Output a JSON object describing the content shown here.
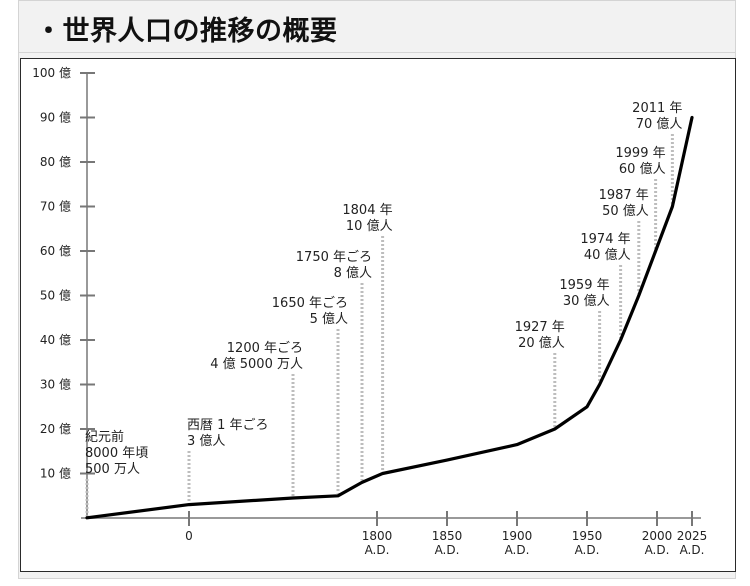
{
  "page_title": "・世界人口の推移の概要",
  "chart_data": {
    "type": "line",
    "title": "",
    "xlabel": "",
    "ylabel": "",
    "y_unit": "億",
    "ylim": [
      0,
      100
    ],
    "y_tick_values": [
      10,
      20,
      30,
      40,
      50,
      60,
      70,
      80,
      90,
      100
    ],
    "y_tick_labels": [
      "10 億",
      "20 億",
      "30 億",
      "40 億",
      "50 億",
      "60 億",
      "70 億",
      "80 億",
      "90 億",
      "100 億"
    ],
    "x_ticks": [
      {
        "year": 0,
        "lines": [
          "0"
        ]
      },
      {
        "year": 1800,
        "lines": [
          "1800",
          "A.D."
        ]
      },
      {
        "year": 1850,
        "lines": [
          "1850",
          "A.D."
        ]
      },
      {
        "year": 1900,
        "lines": [
          "1900",
          "A.D."
        ]
      },
      {
        "year": 1950,
        "lines": [
          "1950",
          "A.D."
        ]
      },
      {
        "year": 2000,
        "lines": [
          "2000",
          "A.D."
        ]
      },
      {
        "year": 2025,
        "lines": [
          "2025",
          "A.D."
        ]
      }
    ],
    "grid": false,
    "x_scale": "non-linear (ancient era compressed before 1800 A.D.)",
    "series": [
      {
        "points": [
          {
            "x": -8000,
            "y": 0.05
          },
          {
            "x": 0,
            "y": 3
          },
          {
            "x": 1200,
            "y": 4.5
          },
          {
            "x": 1650,
            "y": 5
          },
          {
            "x": 1750,
            "y": 8
          },
          {
            "x": 1804,
            "y": 10
          },
          {
            "x": 1850,
            "y": 13
          },
          {
            "x": 1900,
            "y": 16.5
          },
          {
            "x": 1927,
            "y": 20
          },
          {
            "x": 1950,
            "y": 25
          },
          {
            "x": 1959,
            "y": 30
          },
          {
            "x": 1974,
            "y": 40
          },
          {
            "x": 1987,
            "y": 50
          },
          {
            "x": 1999,
            "y": 60
          },
          {
            "x": 2011,
            "y": 70
          },
          {
            "x": 2025,
            "y": 90
          }
        ]
      }
    ],
    "annotations": [
      {
        "x": -8000,
        "y": 0.05,
        "lines": [
          "紀元前",
          "8000 年頃",
          "500 万人"
        ]
      },
      {
        "x": 0,
        "y": 3,
        "lines": [
          "西暦 1 年ごろ",
          "3 億人"
        ]
      },
      {
        "x": 1200,
        "y": 4.5,
        "lines": [
          "1200 年ごろ",
          "4 億 5000 万人"
        ]
      },
      {
        "x": 1650,
        "y": 5,
        "lines": [
          "1650 年ごろ",
          "5 億人"
        ]
      },
      {
        "x": 1750,
        "y": 8,
        "lines": [
          "1750 年ごろ",
          "8 億人"
        ]
      },
      {
        "x": 1804,
        "y": 10,
        "lines": [
          "1804 年",
          "10 億人"
        ]
      },
      {
        "x": 1927,
        "y": 20,
        "lines": [
          "1927 年",
          "20 億人"
        ]
      },
      {
        "x": 1959,
        "y": 30,
        "lines": [
          "1959 年",
          "30 億人"
        ]
      },
      {
        "x": 1974,
        "y": 40,
        "lines": [
          "1974 年",
          "40 億人"
        ]
      },
      {
        "x": 1987,
        "y": 50,
        "lines": [
          "1987 年",
          "50 億人"
        ]
      },
      {
        "x": 1999,
        "y": 60,
        "lines": [
          "1999 年",
          "60 億人"
        ]
      },
      {
        "x": 2011,
        "y": 70,
        "lines": [
          "2011 年",
          "70 億人"
        ]
      }
    ]
  }
}
